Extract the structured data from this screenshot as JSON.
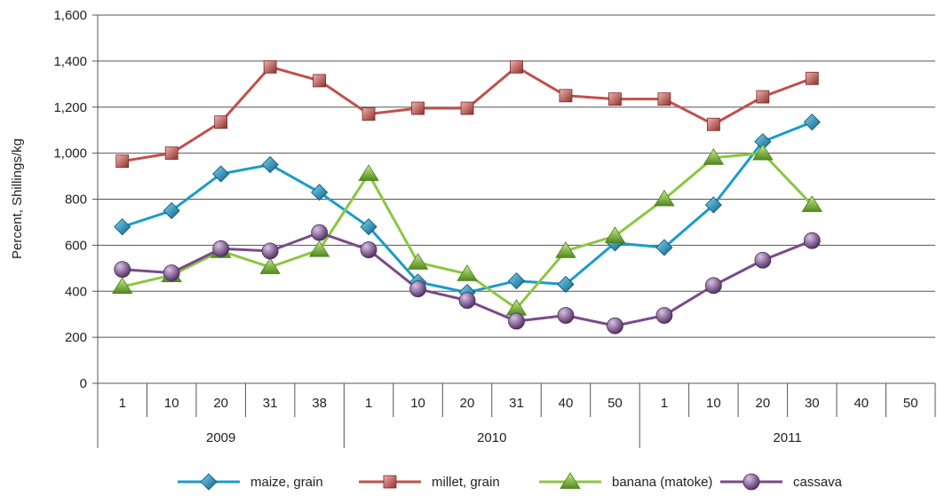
{
  "chart_data": {
    "type": "line",
    "ylabel": "Percent, Shillings/kg",
    "ylim": [
      0,
      1600
    ],
    "yticks": [
      0,
      200,
      400,
      600,
      800,
      1000,
      1200,
      1400,
      1600
    ],
    "ytick_labels": [
      "0",
      "200",
      "400",
      "600",
      "800",
      "1,000",
      "1,200",
      "1,400",
      "1,600"
    ],
    "categories": [
      "1",
      "10",
      "20",
      "31",
      "38",
      "1",
      "10",
      "20",
      "31",
      "40",
      "50",
      "1",
      "10",
      "20",
      "30",
      "40",
      "50"
    ],
    "groups": [
      {
        "label": "2009",
        "start": 0,
        "count": 5
      },
      {
        "label": "2010",
        "start": 5,
        "count": 6
      },
      {
        "label": "2011",
        "start": 11,
        "count": 6
      }
    ],
    "grid": "horizontal",
    "legend_position": "bottom",
    "series": [
      {
        "name": "maize, grain",
        "color": "#1a9cc9",
        "marker": "diamond",
        "values": [
          680,
          750,
          910,
          950,
          830,
          680,
          440,
          395,
          445,
          430,
          610,
          590,
          775,
          1050,
          1135,
          null,
          null
        ]
      },
      {
        "name": "millet, grain",
        "color": "#c0504d",
        "marker": "square",
        "values": [
          965,
          1000,
          1135,
          1375,
          1315,
          1170,
          1195,
          1195,
          1375,
          1250,
          1235,
          1235,
          1125,
          1245,
          1325,
          null,
          null
        ]
      },
      {
        "name": "banana (matoke)",
        "color": "#8cc63f",
        "marker": "triangle",
        "values": [
          420,
          470,
          575,
          505,
          580,
          910,
          525,
          475,
          325,
          575,
          640,
          800,
          980,
          1000,
          775,
          null,
          null
        ]
      },
      {
        "name": "cassava",
        "color": "#7a4a8c",
        "marker": "circle",
        "values": [
          495,
          480,
          585,
          575,
          655,
          580,
          410,
          360,
          270,
          295,
          250,
          295,
          425,
          535,
          620,
          null,
          null
        ]
      }
    ]
  }
}
